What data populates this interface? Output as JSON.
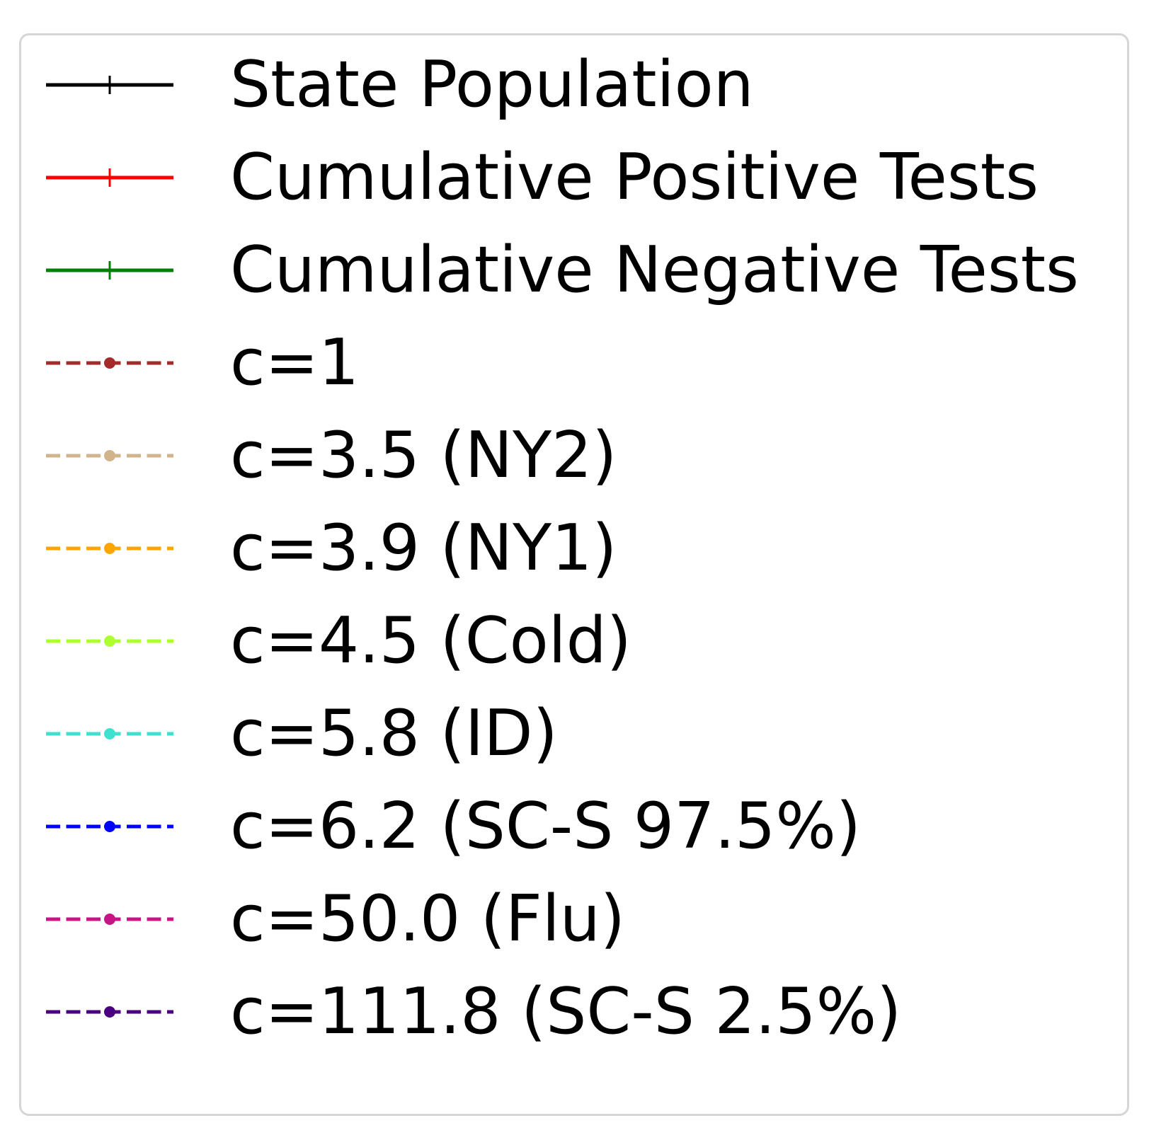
{
  "chart_data": {
    "type": "line",
    "title": "",
    "legend": {
      "placement": "full-frame",
      "frame": true,
      "entries": [
        {
          "label": "State Population",
          "color": "#000000",
          "linestyle": "solid",
          "marker": "plus"
        },
        {
          "label": "Cumulative Positive Tests",
          "color": "#ff0000",
          "linestyle": "solid",
          "marker": "plus"
        },
        {
          "label": "Cumulative Negative Tests",
          "color": "#008000",
          "linestyle": "solid",
          "marker": "plus"
        },
        {
          "label": "c=1",
          "color": "#a52a2a",
          "linestyle": "dashed",
          "marker": "dot"
        },
        {
          "label": "c=3.5 (NY2)",
          "color": "#d2b48c",
          "linestyle": "dashed",
          "marker": "dot"
        },
        {
          "label": "c=3.9 (NY1)",
          "color": "#ffa500",
          "linestyle": "dashed",
          "marker": "dot"
        },
        {
          "label": "c=4.5 (Cold)",
          "color": "#adff2f",
          "linestyle": "dashed",
          "marker": "dot"
        },
        {
          "label": "c=5.8 (ID)",
          "color": "#40e0d0",
          "linestyle": "dashed",
          "marker": "dot"
        },
        {
          "label": "c=6.2 (SC-S 97.5%)",
          "color": "#0000ff",
          "linestyle": "dashed",
          "marker": "dot"
        },
        {
          "label": "c=50.0 (Flu)",
          "color": "#c71585",
          "linestyle": "dashed",
          "marker": "dot"
        },
        {
          "label": "c=111.8 (SC-S 2.5%)",
          "color": "#4b0082",
          "linestyle": "dashed",
          "marker": "dot"
        }
      ]
    }
  }
}
